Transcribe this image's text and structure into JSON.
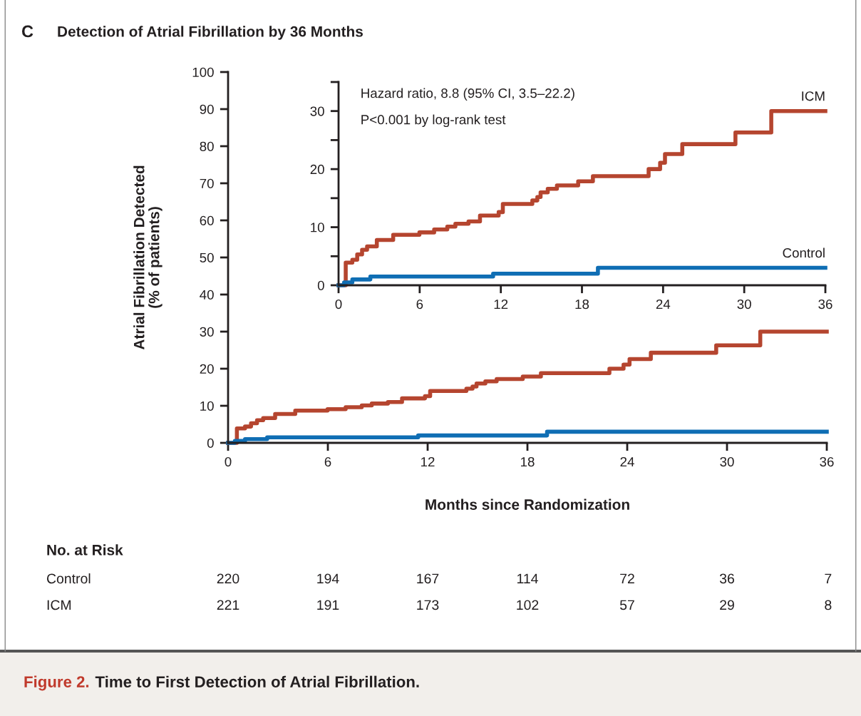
{
  "chart_data": [
    {
      "type": "step",
      "title": "Detection of Atrial Fibrillation by 36 Months",
      "xlabel": "Months since Randomization",
      "ylabel": "Atrial Fibrillation Detected\n(% of patients)",
      "xlim": [
        0,
        36
      ],
      "xticks": [
        0,
        6,
        12,
        18,
        24,
        30,
        36
      ],
      "ylim": [
        0,
        100
      ],
      "yticks": [
        0,
        10,
        20,
        30,
        40,
        50,
        60,
        70,
        80,
        90,
        100
      ],
      "grid": false,
      "legend": false,
      "series": [
        {
          "color": "#b5452f",
          "x": [
            0,
            0.53,
            1.02,
            1.38,
            1.74,
            2.11,
            2.83,
            4.04,
            5.98,
            7.07,
            8.04,
            8.64,
            9.61,
            10.46,
            11.84,
            12.15,
            14.33,
            14.7,
            14.94,
            15.47,
            16.15,
            17.72,
            18.81,
            22.93,
            23.78,
            24.14,
            25.42,
            29.35,
            32.0,
            36
          ],
          "values": [
            0,
            3.9,
            4.4,
            5.3,
            6.1,
            6.7,
            7.8,
            8.7,
            9.1,
            9.6,
            10.1,
            10.6,
            11.0,
            12.0,
            12.6,
            14.0,
            14.6,
            15.2,
            16.0,
            16.6,
            17.2,
            17.9,
            18.8,
            20.0,
            21.1,
            22.6,
            24.3,
            26.3,
            30.0,
            30.0
          ]
        },
        {
          "color": "#0f6eb4",
          "x": [
            0,
            0.41,
            1.02,
            2.35,
            11.43,
            19.18,
            36
          ],
          "values": [
            0,
            0.5,
            1.0,
            1.5,
            2.0,
            3.0,
            3.0
          ]
        }
      ],
      "annotations": [
        "C",
        "No. at Risk",
        "Control",
        "220",
        "194",
        "167",
        "114",
        "72",
        "36",
        "7",
        "ICM",
        "221",
        "191",
        "173",
        "102",
        "57",
        "29",
        "8",
        "Figure 2.",
        "Time to First Detection of Atrial Fibrillation."
      ]
    },
    {
      "type": "step",
      "xlim": [
        0,
        36
      ],
      "xticks": [
        0,
        6,
        12,
        18,
        24,
        30,
        36
      ],
      "ylim": [
        0,
        35
      ],
      "yticks": [
        0,
        {
          "value": 5,
          "label": null
        },
        10,
        {
          "value": 15,
          "label": null
        },
        20,
        {
          "value": 25,
          "label": null
        },
        30,
        {
          "value": 35,
          "label": null
        }
      ],
      "grid": false,
      "legend": false,
      "series": [
        {
          "name": "ICM",
          "color": "#b5452f",
          "x": [
            0,
            0.53,
            1.02,
            1.38,
            1.74,
            2.11,
            2.83,
            4.04,
            5.98,
            7.07,
            8.04,
            8.64,
            9.61,
            10.46,
            11.84,
            12.15,
            14.33,
            14.7,
            14.94,
            15.47,
            16.15,
            17.72,
            18.81,
            22.93,
            23.78,
            24.14,
            25.42,
            29.35,
            32.0,
            36
          ],
          "values": [
            0,
            3.9,
            4.4,
            5.3,
            6.1,
            6.7,
            7.8,
            8.7,
            9.1,
            9.6,
            10.1,
            10.6,
            11.0,
            12.0,
            12.6,
            14.0,
            14.6,
            15.2,
            16.0,
            16.6,
            17.2,
            17.9,
            18.8,
            20.0,
            21.1,
            22.6,
            24.3,
            26.3,
            30.0,
            30.0
          ]
        },
        {
          "name": "Control",
          "color": "#0f6eb4",
          "x": [
            0,
            0.41,
            1.02,
            2.35,
            11.43,
            19.18,
            36
          ],
          "values": [
            0,
            0.5,
            1.0,
            1.5,
            2.0,
            3.0,
            3.0
          ]
        }
      ],
      "annotations": [
        "Hazard ratio, 8.8 (95% CI, 3.5–22.2)",
        "P<0.001 by log-rank test"
      ]
    }
  ]
}
